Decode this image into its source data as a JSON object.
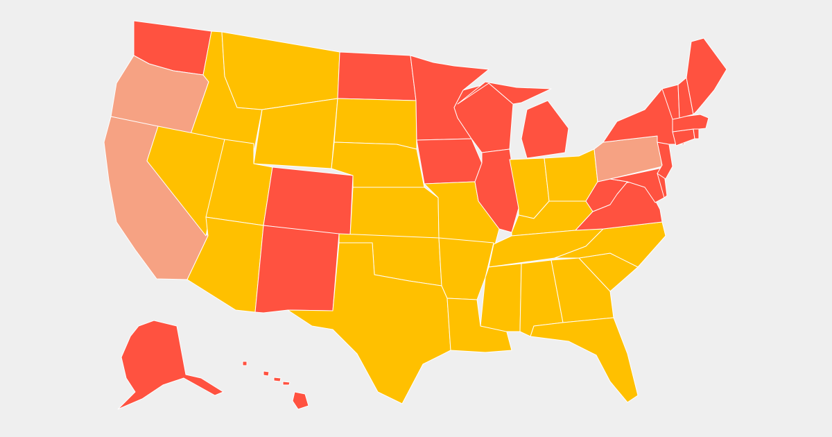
{
  "map": {
    "background": "#efefef",
    "border_color": "#ffffff",
    "categories": {
      "a": {
        "color": "#ff5240"
      },
      "b": {
        "color": "#ffc000"
      },
      "c": {
        "color": "#f6a283"
      }
    },
    "states": [
      {
        "id": "WA",
        "cat": "a"
      },
      {
        "id": "OR",
        "cat": "c"
      },
      {
        "id": "CA",
        "cat": "c"
      },
      {
        "id": "ID",
        "cat": "b"
      },
      {
        "id": "NV",
        "cat": "b"
      },
      {
        "id": "MT",
        "cat": "b"
      },
      {
        "id": "WY",
        "cat": "b"
      },
      {
        "id": "UT",
        "cat": "b"
      },
      {
        "id": "AZ",
        "cat": "b"
      },
      {
        "id": "CO",
        "cat": "a"
      },
      {
        "id": "NM",
        "cat": "a"
      },
      {
        "id": "ND",
        "cat": "a"
      },
      {
        "id": "SD",
        "cat": "b"
      },
      {
        "id": "NE",
        "cat": "b"
      },
      {
        "id": "KS",
        "cat": "b"
      },
      {
        "id": "OK",
        "cat": "b"
      },
      {
        "id": "TX",
        "cat": "b"
      },
      {
        "id": "MN",
        "cat": "a"
      },
      {
        "id": "IA",
        "cat": "a"
      },
      {
        "id": "MO",
        "cat": "b"
      },
      {
        "id": "AR",
        "cat": "b"
      },
      {
        "id": "LA",
        "cat": "b"
      },
      {
        "id": "WI",
        "cat": "a"
      },
      {
        "id": "IL",
        "cat": "a"
      },
      {
        "id": "MI",
        "cat": "a"
      },
      {
        "id": "IN",
        "cat": "b"
      },
      {
        "id": "OH",
        "cat": "b"
      },
      {
        "id": "KY",
        "cat": "b"
      },
      {
        "id": "TN",
        "cat": "b"
      },
      {
        "id": "MS",
        "cat": "b"
      },
      {
        "id": "AL",
        "cat": "b"
      },
      {
        "id": "GA",
        "cat": "b"
      },
      {
        "id": "FL",
        "cat": "b"
      },
      {
        "id": "SC",
        "cat": "b"
      },
      {
        "id": "NC",
        "cat": "b"
      },
      {
        "id": "VA",
        "cat": "a"
      },
      {
        "id": "WV",
        "cat": "a"
      },
      {
        "id": "PA",
        "cat": "c"
      },
      {
        "id": "NY",
        "cat": "a"
      },
      {
        "id": "VT",
        "cat": "a"
      },
      {
        "id": "NH",
        "cat": "a"
      },
      {
        "id": "ME",
        "cat": "a"
      },
      {
        "id": "MA",
        "cat": "a"
      },
      {
        "id": "RI",
        "cat": "a"
      },
      {
        "id": "CT",
        "cat": "a"
      },
      {
        "id": "NJ",
        "cat": "a"
      },
      {
        "id": "DE",
        "cat": "a"
      },
      {
        "id": "MD",
        "cat": "a"
      },
      {
        "id": "AK",
        "cat": "a"
      },
      {
        "id": "HI",
        "cat": "a"
      }
    ]
  }
}
